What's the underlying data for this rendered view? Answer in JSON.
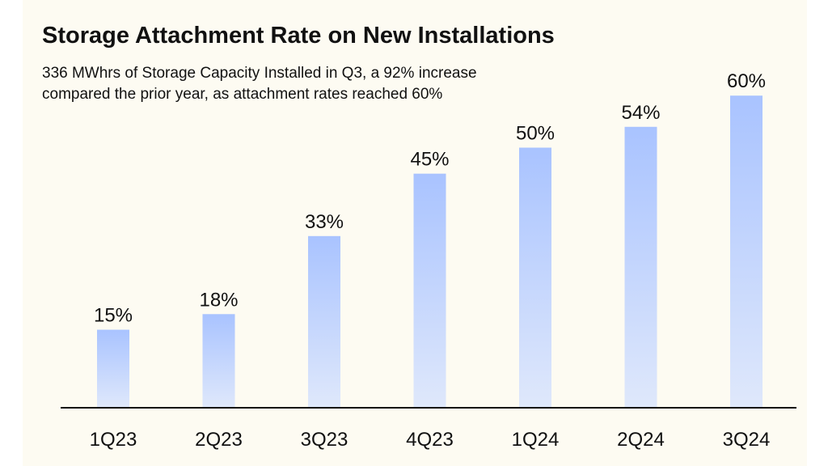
{
  "title": "Storage Attachment Rate on New Installations",
  "subtitle": "336 MWhrs of Storage Capacity Installed in Q3, a 92% increase compared the prior year, as attachment rates reached 60%",
  "colors": {
    "background": "#fdfbf2",
    "bar_top": "#a9c3ff",
    "bar_bottom": "#dfe8fb",
    "baseline": "#111111",
    "text": "#111111"
  },
  "chart_data": {
    "type": "bar",
    "title": "Storage Attachment Rate on New Installations",
    "subtitle": "336 MWhrs of Storage Capacity Installed in Q3, a 92% increase compared the prior year, as attachment rates reached 60%",
    "categories": [
      "1Q23",
      "2Q23",
      "3Q23",
      "4Q23",
      "1Q24",
      "2Q24",
      "3Q24"
    ],
    "values": [
      15,
      18,
      33,
      45,
      50,
      54,
      60
    ],
    "data_labels": [
      "15%",
      "18%",
      "33%",
      "45%",
      "50%",
      "54%",
      "60%"
    ],
    "unit": "%",
    "xlabel": "",
    "ylabel": "",
    "ylim": [
      0,
      72
    ],
    "grid": false,
    "legend": "none"
  }
}
